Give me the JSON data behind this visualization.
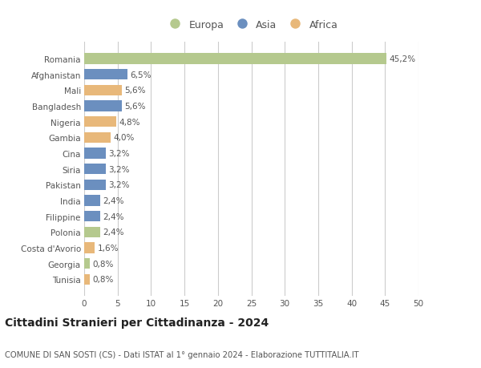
{
  "countries": [
    "Romania",
    "Afghanistan",
    "Mali",
    "Bangladesh",
    "Nigeria",
    "Gambia",
    "Cina",
    "Siria",
    "Pakistan",
    "India",
    "Filippine",
    "Polonia",
    "Costa d'Avorio",
    "Georgia",
    "Tunisia"
  ],
  "values": [
    45.2,
    6.5,
    5.6,
    5.6,
    4.8,
    4.0,
    3.2,
    3.2,
    3.2,
    2.4,
    2.4,
    2.4,
    1.6,
    0.8,
    0.8
  ],
  "labels": [
    "45,2%",
    "6,5%",
    "5,6%",
    "5,6%",
    "4,8%",
    "4,0%",
    "3,2%",
    "3,2%",
    "3,2%",
    "2,4%",
    "2,4%",
    "2,4%",
    "1,6%",
    "0,8%",
    "0,8%"
  ],
  "continents": [
    "Europa",
    "Asia",
    "Africa",
    "Asia",
    "Africa",
    "Africa",
    "Asia",
    "Asia",
    "Asia",
    "Asia",
    "Asia",
    "Europa",
    "Africa",
    "Europa",
    "Africa"
  ],
  "colors": {
    "Europa": "#b5c98e",
    "Asia": "#6b8fbf",
    "Africa": "#e8b87a"
  },
  "title": "Cittadini Stranieri per Cittadinanza - 2024",
  "subtitle": "COMUNE DI SAN SOSTI (CS) - Dati ISTAT al 1° gennaio 2024 - Elaborazione TUTTITALIA.IT",
  "xlim": [
    0,
    50
  ],
  "xticks": [
    0,
    5,
    10,
    15,
    20,
    25,
    30,
    35,
    40,
    45,
    50
  ],
  "background_color": "#ffffff",
  "grid_color": "#cccccc",
  "bar_height": 0.68,
  "label_fontsize": 7.5,
  "tick_fontsize": 7.5,
  "title_fontsize": 10,
  "subtitle_fontsize": 7.2,
  "text_color": "#555555"
}
